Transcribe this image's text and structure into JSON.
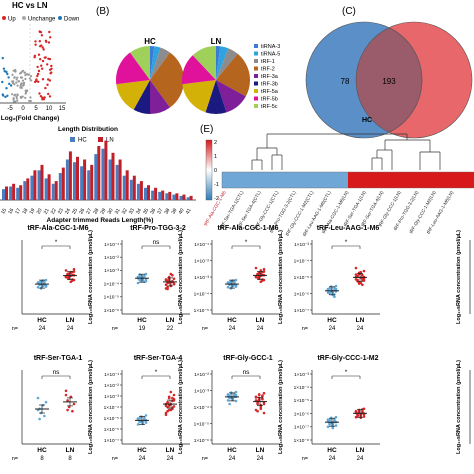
{
  "panels": {
    "A": {
      "title": "HC vs LN",
      "legend": [
        "Up",
        "Unchange",
        "Down"
      ],
      "xlabel": "Log₂(Fold Change)",
      "xticks": [
        "-5",
        "0",
        "5",
        "10",
        "15"
      ]
    },
    "B": {
      "label": "(B)",
      "pie_titles": [
        "HC",
        "LN"
      ],
      "legend": [
        "tiRNA-3",
        "tiRNA-5",
        "tRF-1",
        "tRF-2",
        "tRF-3a",
        "tRF-3b",
        "tRF-5a",
        "tRF-5b",
        "tRF-5c"
      ]
    },
    "C": {
      "label": "(C)",
      "venn": {
        "left_only": "78",
        "overlap": "193",
        "left_label": "HC"
      }
    },
    "D": {
      "title": "Length Distribution",
      "legend": [
        "HC",
        "LN"
      ],
      "xlabel": "Adapter trimmed Reads Length(%)",
      "xticks": [
        "15",
        "16",
        "17",
        "18",
        "19",
        "20",
        "21",
        "22",
        "23",
        "24",
        "25",
        "26",
        "27",
        "28",
        "29",
        "30",
        "31",
        "32",
        "33",
        "34",
        "35",
        "36",
        "37",
        "38",
        "39",
        "40",
        "41"
      ]
    },
    "E": {
      "label": "(E)",
      "colorbar_ticks": [
        "2",
        "1",
        "0",
        "-1",
        "-2"
      ],
      "rows": [
        "tRF-Ala-CGC-1-M6",
        "tRF-Ser-TGA-1(CTL)",
        "tRF-Ser-TGA-4(CTL)",
        "tRF-Gly-CCC-1(CTL)",
        "tRF-Pro-TGG-3-2(CTL)",
        "tRF-Gly-CCC-1-M2(CTL)",
        "tRF-Leu-AAG-1-M6(CTL)",
        "tRF-Ala-CGC-1-M6(LN)",
        "tRF-Ser-TGA-1(LN)",
        "tRF-Ser-TGA-4(LN)",
        "tRF-Gly-CCC-1(LN)",
        "tRF-Pro-TGG-3-2(LN)",
        "tRF-Gly-CCC-1-M2(LN)",
        "tRF-Leu-AAG-1-M6(LN)"
      ]
    }
  },
  "scatter_common": {
    "ylabel": "Log₁₀sRNA concentration (pmol/µL)",
    "n_label": "n="
  },
  "chart_data": [
    {
      "type": "scatter",
      "title": "tRF-Ala-CGC-1-M6",
      "categories": [
        "HC",
        "LN"
      ],
      "n": [
        "24",
        "24"
      ],
      "sig": "*",
      "yticks": [],
      "series": [
        {
          "name": "HC",
          "values": [
            0.45,
            0.42,
            0.48,
            0.4,
            0.44,
            0.5,
            0.38,
            0.46,
            0.43,
            0.41,
            0.47,
            0.39,
            0.45,
            0.44,
            0.36,
            0.49,
            0.42,
            0.4,
            0.46,
            0.43,
            0.37,
            0.48,
            0.44,
            0.41
          ]
        },
        {
          "name": "LN",
          "values": [
            0.55,
            0.6,
            0.52,
            0.63,
            0.58,
            0.5,
            0.66,
            0.54,
            0.61,
            0.57,
            0.49,
            0.64,
            0.56,
            0.59,
            0.53,
            0.62,
            0.51,
            0.68,
            0.55,
            0.6,
            0.57,
            0.47,
            0.63,
            0.58
          ]
        }
      ]
    },
    {
      "type": "scatter",
      "title": "tRF-Pro-TGG-3-2",
      "categories": [
        "HC",
        "LN"
      ],
      "n": [
        "19",
        "22"
      ],
      "sig": "ns",
      "yticks": [
        "1×10⁻¹",
        "1×10⁻²",
        "1×10⁻³",
        "1×10⁻⁴",
        "1×10⁻⁵",
        "1×10⁻⁶"
      ],
      "series": [
        {
          "name": "HC",
          "values": [
            0.55,
            0.5,
            0.58,
            0.52,
            0.47,
            0.6,
            0.53,
            0.56,
            0.49,
            0.54,
            0.57,
            0.51,
            0.45,
            0.59,
            0.53,
            0.5,
            0.56,
            0.48,
            0.55
          ]
        },
        {
          "name": "LN",
          "values": [
            0.5,
            0.45,
            0.55,
            0.4,
            0.48,
            0.52,
            0.42,
            0.38,
            0.5,
            0.46,
            0.58,
            0.44,
            0.36,
            0.49,
            0.53,
            0.41,
            0.47,
            0.43,
            0.51,
            0.35,
            0.46,
            0.6
          ]
        }
      ]
    },
    {
      "type": "scatter",
      "title": "tRF-Ala-CGC-1-M6",
      "categories": [
        "HC",
        "LN"
      ],
      "n": [
        "24",
        "24"
      ],
      "sig": "*",
      "yticks": [
        "1×10⁻¹",
        "1×10⁻²",
        "1×10⁻³",
        "1×10⁻⁴",
        "1×10⁻⁵"
      ],
      "series": [
        {
          "name": "HC",
          "values": [
            0.45,
            0.42,
            0.48,
            0.4,
            0.44,
            0.5,
            0.38,
            0.46,
            0.43,
            0.41,
            0.47,
            0.39,
            0.45,
            0.44,
            0.36,
            0.49,
            0.42,
            0.4,
            0.46,
            0.43,
            0.37,
            0.48,
            0.44,
            0.41
          ]
        },
        {
          "name": "LN",
          "values": [
            0.55,
            0.6,
            0.52,
            0.66,
            0.58,
            0.5,
            0.7,
            0.54,
            0.62,
            0.57,
            0.49,
            0.64,
            0.56,
            0.59,
            0.53,
            0.61,
            0.51,
            0.68,
            0.55,
            0.6,
            0.57,
            0.47,
            0.63,
            0.58
          ]
        }
      ]
    },
    {
      "type": "scatter",
      "title": "tRF-Leu-AAG-1-M6",
      "categories": [
        "HC",
        "LN"
      ],
      "n": [
        "24",
        "24"
      ],
      "sig": "*",
      "yticks": [
        "1×10⁻³",
        "1×10⁻⁴",
        "1×10⁻⁵",
        "1×10⁻⁶",
        "1×10⁻⁷"
      ],
      "series": [
        {
          "name": "HC",
          "values": [
            0.35,
            0.3,
            0.38,
            0.27,
            0.33,
            0.4,
            0.29,
            0.36,
            0.32,
            0.25,
            0.37,
            0.31,
            0.34,
            0.28,
            0.39,
            0.3,
            0.26,
            0.35,
            0.33,
            0.29,
            0.36,
            0.31,
            0.22,
            0.34
          ]
        },
        {
          "name": "LN",
          "values": [
            0.55,
            0.5,
            0.62,
            0.45,
            0.58,
            0.52,
            0.7,
            0.48,
            0.6,
            0.54,
            0.42,
            0.65,
            0.51,
            0.57,
            0.46,
            0.63,
            0.53,
            0.49,
            0.59,
            0.56,
            0.44,
            0.61,
            0.5,
            0.55
          ]
        }
      ]
    },
    {
      "type": "scatter",
      "title": "",
      "categories": [],
      "n": [],
      "sig": "",
      "yticks": [],
      "series": []
    },
    {
      "type": "scatter",
      "title": "tRF-Ser-TGA-1",
      "categories": [
        "HC",
        "LN"
      ],
      "n": [
        "8",
        "8"
      ],
      "sig": "ns",
      "yticks": [],
      "series": [
        {
          "name": "HC",
          "values": [
            0.7,
            0.52,
            0.45,
            0.58,
            0.4,
            0.63,
            0.5,
            0.35
          ]
        },
        {
          "name": "LN",
          "values": [
            0.82,
            0.66,
            0.55,
            0.72,
            0.48,
            0.6,
            0.75,
            0.5
          ]
        }
      ]
    },
    {
      "type": "scatter",
      "title": "tRF-Ser-TGA-4",
      "categories": [
        "HC",
        "LN"
      ],
      "n": [
        "24",
        "24"
      ],
      "sig": "*",
      "yticks": [
        "1×10⁻¹",
        "1×10⁻²",
        "1×10⁻³",
        "1×10⁻⁴",
        "1×10⁻⁵",
        "1×10⁻⁶",
        "1×10⁻⁷"
      ],
      "series": [
        {
          "name": "HC",
          "values": [
            0.35,
            0.3,
            0.38,
            0.28,
            0.33,
            0.41,
            0.26,
            0.36,
            0.32,
            0.3,
            0.37,
            0.29,
            0.34,
            0.31,
            0.39,
            0.27,
            0.35,
            0.33,
            0.36,
            0.3,
            0.32,
            0.28,
            0.34,
            0.31
          ]
        },
        {
          "name": "LN",
          "values": [
            0.6,
            0.55,
            0.7,
            0.5,
            0.65,
            0.75,
            0.45,
            0.62,
            0.58,
            0.8,
            0.52,
            0.68,
            0.57,
            0.48,
            0.72,
            0.6,
            0.54,
            0.66,
            0.42,
            0.63,
            0.5,
            0.59,
            0.7,
            0.56
          ]
        }
      ]
    },
    {
      "type": "scatter",
      "title": "tRF-Gly-GCC-1",
      "categories": [
        "HC",
        "LN"
      ],
      "n": [
        "24",
        "24"
      ],
      "sig": "ns",
      "yticks": [
        "1×10⁻²",
        "1×10⁻³",
        "1×10⁻⁴",
        "1×10⁻⁵",
        "1×10⁻⁶"
      ],
      "series": [
        {
          "name": "HC",
          "values": [
            0.75,
            0.7,
            0.78,
            0.68,
            0.72,
            0.8,
            0.66,
            0.74,
            0.71,
            0.69,
            0.77,
            0.65,
            0.73,
            0.7,
            0.79,
            0.67,
            0.74,
            0.72,
            0.76,
            0.6,
            0.71,
            0.69,
            0.73,
            0.75
          ]
        },
        {
          "name": "LN",
          "values": [
            0.72,
            0.6,
            0.75,
            0.55,
            0.68,
            0.78,
            0.5,
            0.65,
            0.7,
            0.58,
            0.73,
            0.45,
            0.66,
            0.62,
            0.76,
            0.52,
            0.69,
            0.63,
            0.71,
            0.48,
            0.67,
            0.57,
            0.74,
            0.6
          ]
        }
      ]
    },
    {
      "type": "scatter",
      "title": "tRF-Gly-CCC-1-M2",
      "categories": [
        "HC",
        "LN"
      ],
      "n": [
        "24",
        "24"
      ],
      "sig": "*",
      "yticks": [
        "1×10⁻³",
        "1×10⁻⁴",
        "1×10⁻⁵",
        "1×10⁻⁶",
        "1×10⁻⁷",
        "1×10⁻⁸"
      ],
      "series": [
        {
          "name": "HC",
          "values": [
            0.32,
            0.28,
            0.36,
            0.25,
            0.3,
            0.38,
            0.22,
            0.33,
            0.29,
            0.27,
            0.35,
            0.24,
            0.31,
            0.28,
            0.37,
            0.2,
            0.32,
            0.3,
            0.34,
            0.26,
            0.29,
            0.23,
            0.33,
            0.3
          ]
        },
        {
          "name": "LN",
          "values": [
            0.45,
            0.42,
            0.5,
            0.4,
            0.47,
            0.52,
            0.38,
            0.44,
            0.48,
            0.43,
            0.51,
            0.39,
            0.46,
            0.41,
            0.49,
            0.37,
            0.45,
            0.43,
            0.48,
            0.4,
            0.46,
            0.42,
            0.5,
            0.44
          ]
        }
      ]
    },
    {
      "type": "scatter",
      "title": "",
      "categories": [],
      "n": [],
      "sig": "",
      "yticks": [],
      "series": []
    }
  ]
}
